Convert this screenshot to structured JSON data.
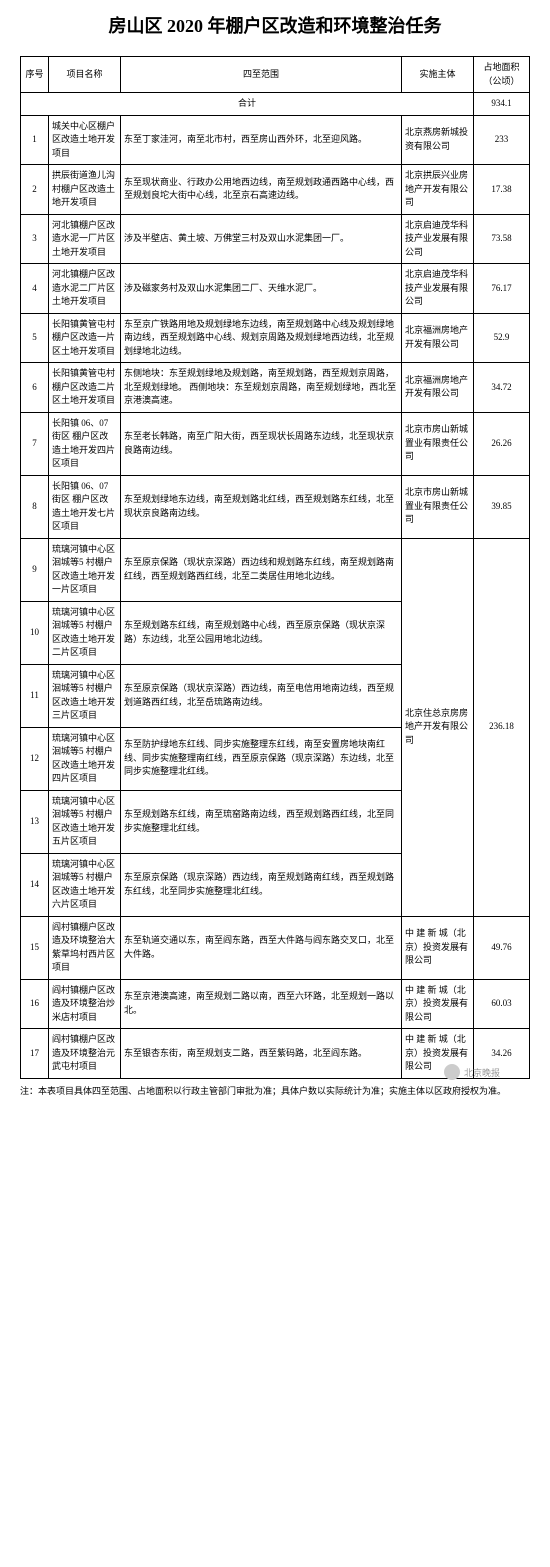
{
  "title": "房山区 2020 年棚户区改造和环境整治任务",
  "headers": {
    "num": "序号",
    "name": "项目名称",
    "scope": "四至范围",
    "entity": "实施主体",
    "area": "占地面积（公顷）"
  },
  "total_label": "合计",
  "total_value": "934.1",
  "rows": [
    {
      "num": "1",
      "name": "城关中心区棚户区改造土地开发项目",
      "scope": "东至丁家洼河，南至北市村，西至房山西外环，北至迎风路。",
      "entity": "北京燕房新城投资有限公司",
      "area": "233"
    },
    {
      "num": "2",
      "name": "拱辰街道渔儿沟村棚户区改造土地开发项目",
      "scope": "东至现状商业、行政办公用地西边线，南至规划政通西路中心线，西至规划良坨大街中心线，北至京石高速边线。",
      "entity": "北京拱辰兴业房地产开发有限公司",
      "area": "17.38"
    },
    {
      "num": "3",
      "name": "河北镇棚户区改造水泥一厂片区土地开发项目",
      "scope": "涉及半壁店、黄土坡、万佛堂三村及双山水泥集团一厂。",
      "entity": "北京启迪茂华科技产业发展有限公司",
      "area": "73.58"
    },
    {
      "num": "4",
      "name": "河北镇棚户区改造水泥二厂片区土地开发项目",
      "scope": "涉及磁家务村及双山水泥集团二厂、天维水泥厂。",
      "entity": "北京启迪茂华科技产业发展有限公司",
      "area": "76.17"
    },
    {
      "num": "5",
      "name": "长阳镇黄管屯村棚户区改造一片区土地开发项目",
      "scope": "东至京广铁路用地及规划绿地东边线，南至规划路中心线及规划绿地南边线，西至规划路中心线、规划京周路及规划绿地西边线，北至规划绿地北边线。",
      "entity": "北京福洲房地产开发有限公司",
      "area": "52.9"
    },
    {
      "num": "6",
      "name": "长阳镇黄管屯村棚户区改造二片区土地开发项目",
      "scope": "东侧地块：东至规划绿地及规划路，南至规划路，西至规划京周路，北至规划绿地。\n西侧地块：东至规划京周路，南至规划绿地，西北至京港澳高速。",
      "entity": "北京福洲房地产开发有限公司",
      "area": "34.72"
    },
    {
      "num": "7",
      "name": "长阳镇 06、07 街区 棚户区改造土地开发四片区项目",
      "scope": "东至老长韩路，南至广阳大街，西至现状长周路东边线，北至现状京良路南边线。",
      "entity": "北京市房山新城置业有限责任公司",
      "area": "26.26"
    },
    {
      "num": "8",
      "name": "长阳镇 06、07 街区 棚户区改造土地开发七片区项目",
      "scope": "东至规划绿地东边线，南至规划路北红线，西至规划路东红线，北至现状京良路南边线。",
      "entity": "北京市房山新城置业有限责任公司",
      "area": "39.85"
    }
  ],
  "merged_group": {
    "entity": "北京住总京房房地产开发有限公司",
    "area": "236.18",
    "rows": [
      {
        "num": "9",
        "name": "琉璃河镇中心区洄城等5 村棚户区改造土地开发一片区项目",
        "scope": "东至原京保路（现状京深路）西边线和规划路东红线，南至规划路南红线，西至规划路西红线，北至二类居住用地北边线。"
      },
      {
        "num": "10",
        "name": "琉璃河镇中心区洄城等5 村棚户区改造土地开发二片区项目",
        "scope": "东至规划路东红线，南至规划路中心线，西至原京保路（现状京深路）东边线，北至公园用地北边线。"
      },
      {
        "num": "11",
        "name": "琉璃河镇中心区洄城等5 村棚户区改造土地开发三片区项目",
        "scope": "东至原京保路（现状京深路）西边线，南至电信用地南边线，西至规划道路西红线，北至岳琉路南边线。"
      },
      {
        "num": "12",
        "name": "琉璃河镇中心区洄城等5 村棚户区改造土地开发四片区项目",
        "scope": "东至防护绿地东红线、同步实施整理东红线，南至安置房地块南红线、同步实施整理南红线，西至原京保路（现京深路）东边线，北至同步实施整理北红线。"
      },
      {
        "num": "13",
        "name": "琉璃河镇中心区洄城等5 村棚户区改造土地开发五片区项目",
        "scope": "东至规划路东红线，南至琉窑路南边线，西至规划路西红线，北至同步实施整理北红线。"
      },
      {
        "num": "14",
        "name": "琉璃河镇中心区洄城等5 村棚户区改造土地开发六片区项目",
        "scope": "东至原京保路（现京深路）西边线，南至规划路南红线，西至规划路东红线，北至同步实施整理北红线。"
      }
    ]
  },
  "rows2": [
    {
      "num": "15",
      "name": "阎村镇棚户区改造及环境整治大紫草坞村西片区项目",
      "scope": "东至轨道交通以东，南至阎东路，西至大件路与阎东路交叉口，北至大件路。",
      "entity": "中 建 新 城（北京）投资发展有限公司",
      "area": "49.76"
    },
    {
      "num": "16",
      "name": "阎村镇棚户区改造及环境整治炒米店村项目",
      "scope": "东至京港澳高速，南至规划二路以南，西至六环路，北至规划一路以北。",
      "entity": "中 建 新 城（北京）投资发展有限公司",
      "area": "60.03"
    },
    {
      "num": "17",
      "name": "阎村镇棚户区改造及环境整治元武屯村项目",
      "scope": "东至银杏东街，南至规划支二路，西至紫码路，北至阎东路。",
      "entity": "中 建 新 城（北京）投资发展有限公司",
      "area": "34.26"
    }
  ],
  "footnote": "注：本表项目具体四至范围、占地面积以行政主管部门审批为准；具体户数以实际统计为准；实施主体以区政府授权为准。",
  "watermark": "北京晚报"
}
